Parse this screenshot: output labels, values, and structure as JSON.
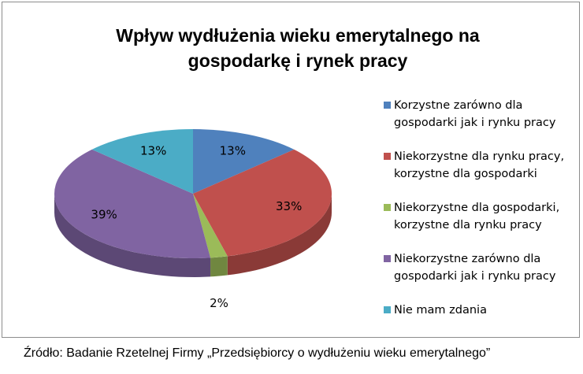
{
  "chart_data": {
    "type": "pie",
    "title": "Wpływ wydłużenia wieku emerytalnego na gospodarkę i rynek pracy",
    "categories": [
      "Korzystne zarówno dla gospodarki jak i rynku pracy",
      "Niekorzystne dla rynku pracy, korzystne dla gospodarki",
      "Niekorzystne dla gospodarki, korzystne dla rynku pracy",
      "Niekorzystne zarówno dla gospodarki jak i rynku pracy",
      "Nie mam zdania"
    ],
    "values": [
      13,
      33,
      2,
      39,
      13
    ],
    "value_labels": [
      "13%",
      "33%",
      "2%",
      "39%",
      "13%"
    ],
    "colors": [
      "#4f81bd",
      "#c0504d",
      "#9bbb59",
      "#8064a2",
      "#4bacc6"
    ],
    "legend": "right",
    "source": "Źródło: Badanie Rzetelnej Firmy „Przedsiębiorcy o wydłużeniu wieku emerytalnego”"
  }
}
